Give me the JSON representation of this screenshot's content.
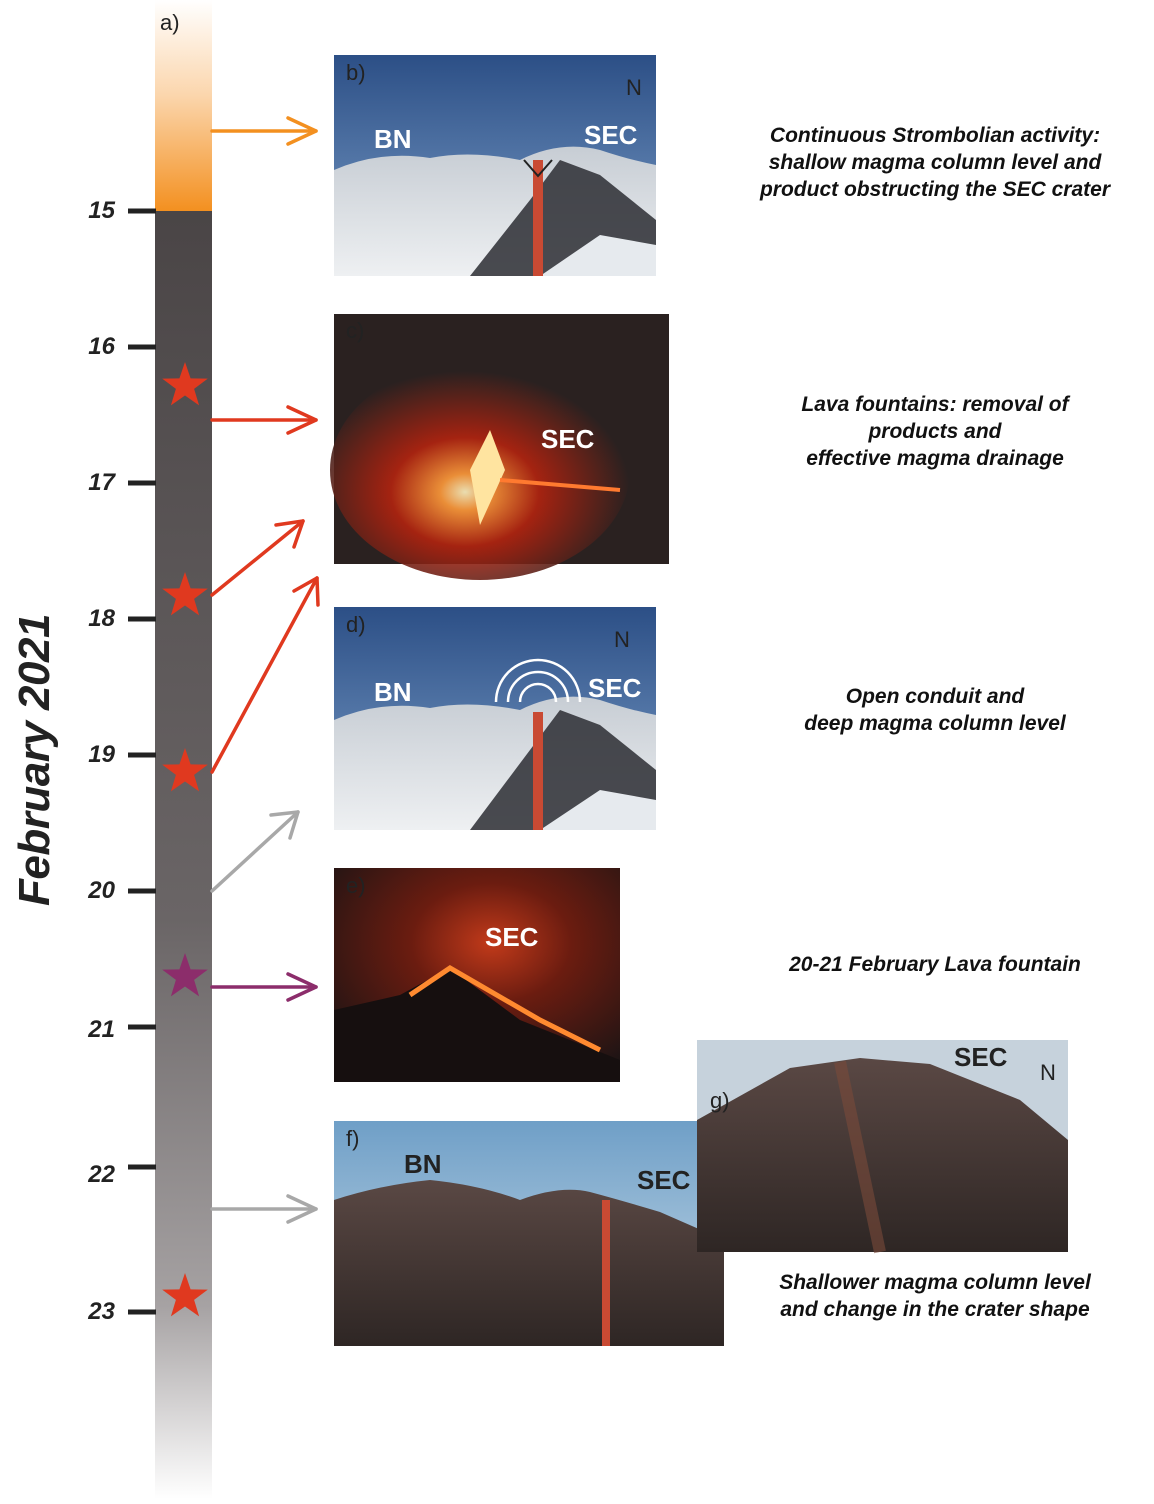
{
  "axis": {
    "title": "February 2021",
    "ticks": [
      "15",
      "16",
      "17",
      "18",
      "19",
      "20",
      "21",
      "22",
      "23"
    ]
  },
  "panels": {
    "a": {
      "letter": "a)"
    },
    "b": {
      "letter": "b)",
      "labels": [
        "BN",
        "SEC"
      ]
    },
    "c": {
      "letter": "c)",
      "labels": [
        "SEC"
      ]
    },
    "d": {
      "letter": "d)",
      "labels": [
        "BN",
        "SEC"
      ]
    },
    "e": {
      "letter": "e)",
      "labels": [
        "SEC"
      ]
    },
    "f": {
      "letter": "f)",
      "labels": [
        "BN",
        "SEC"
      ]
    },
    "g": {
      "letter": "g)",
      "labels": [
        "SEC"
      ]
    }
  },
  "descriptions": [
    [
      "Continuous Strombolian activity:",
      "shallow magma column level and",
      "product obstructing the SEC crater"
    ],
    [
      "Lava fountains: removal of",
      "products and",
      "effective magma drainage"
    ],
    [
      "Open conduit and",
      "deep magma column level"
    ],
    [
      "20-21 February Lava fountain"
    ],
    [
      "Shallower magma column level",
      "and change in the crater shape"
    ]
  ],
  "colors": {
    "strombolian": "#f39020",
    "lava_fountain": "#e0391f",
    "open_conduit": "#a8a8a8",
    "lava_fountain_20_21": "#8c2d6b",
    "timeline_dark": "#4a4546"
  }
}
